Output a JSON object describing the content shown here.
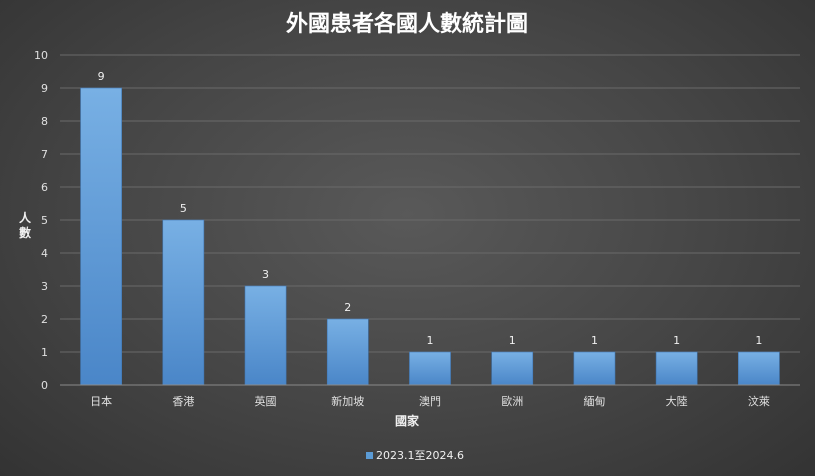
{
  "chart_data": {
    "type": "bar",
    "title": "外國患者各國人數統計圖",
    "xlabel": "國家",
    "ylabel": "人數",
    "ylim": [
      0,
      10
    ],
    "yticks": [
      0,
      1,
      2,
      3,
      4,
      5,
      6,
      7,
      8,
      9,
      10
    ],
    "categories": [
      "日本",
      "香港",
      "英國",
      "新加坡",
      "澳門",
      "歐洲",
      "緬甸",
      "大陸",
      "汶萊"
    ],
    "series": [
      {
        "name": "2023.1至2024.6",
        "values": [
          9,
          5,
          3,
          2,
          1,
          1,
          1,
          1,
          1
        ]
      }
    ],
    "grid": true,
    "legend_position": "bottom",
    "bar_color": "#5b9bd5"
  }
}
